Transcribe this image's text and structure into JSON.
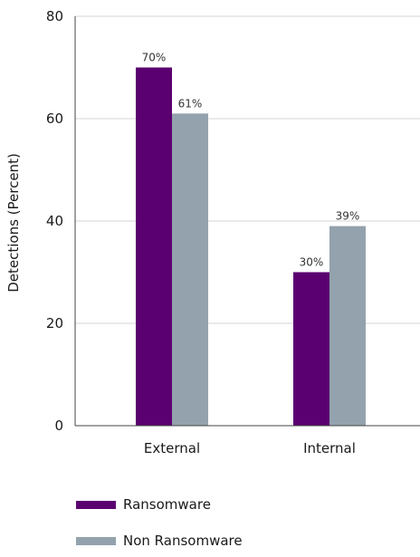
{
  "chart_data": {
    "type": "bar",
    "categories": [
      "External",
      "Internal"
    ],
    "series": [
      {
        "name": "Ransomware",
        "values": [
          70,
          30
        ],
        "labels": [
          "70%",
          "30%"
        ],
        "color": "#5b0070"
      },
      {
        "name": "Non Ransomware",
        "values": [
          61,
          39
        ],
        "labels": [
          "61%",
          "39%"
        ],
        "color": "#93a2ad"
      }
    ],
    "title": "",
    "xlabel": "",
    "ylabel": "Detections (Percent)",
    "ylim": [
      0,
      80
    ],
    "yticks": [
      0,
      20,
      40,
      60,
      80
    ],
    "grid": true,
    "legend_position": "bottom-left"
  }
}
